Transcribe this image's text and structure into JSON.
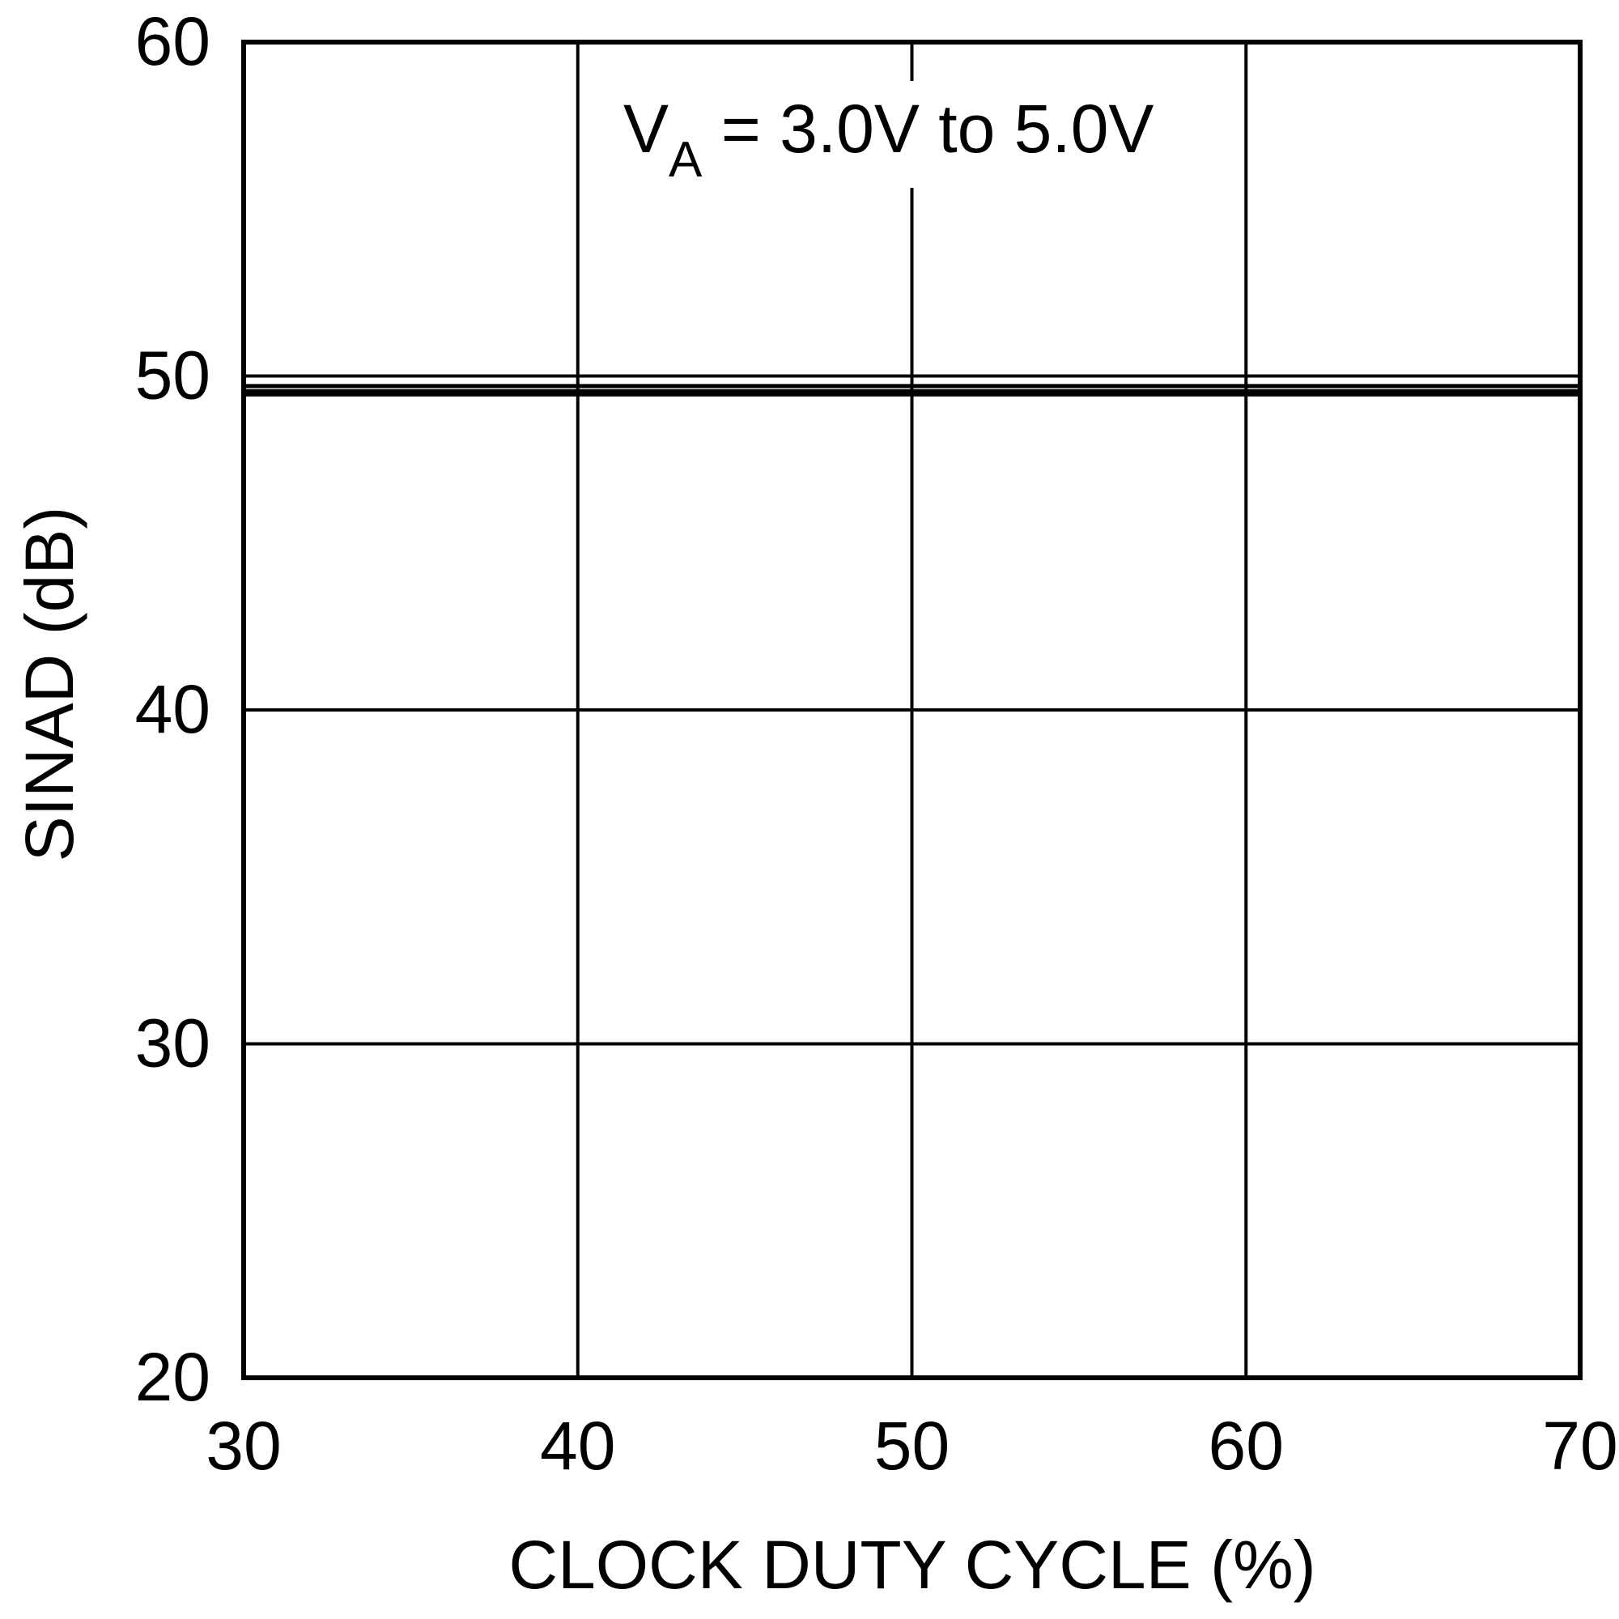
{
  "chart_data": {
    "type": "line",
    "title": "",
    "xlabel": "CLOCK DUTY CYCLE (%)",
    "ylabel": "SINAD (dB)",
    "xlim": [
      30,
      70
    ],
    "ylim": [
      20,
      60
    ],
    "xticks": [
      "30",
      "40",
      "50",
      "60",
      "70"
    ],
    "yticks": [
      "20",
      "30",
      "40",
      "50",
      "60"
    ],
    "grid": true,
    "legend": "none",
    "annotation": {
      "main": "V",
      "subscript": "A",
      "rest": " = 3.0V to 5.0V"
    },
    "series": [
      {
        "x": [
          30,
          40,
          50,
          60,
          70
        ],
        "y": [
          49.7,
          49.7,
          49.7,
          49.7,
          49.7
        ]
      },
      {
        "x": [
          30,
          40,
          50,
          60,
          70
        ],
        "y": [
          49.55,
          49.55,
          49.55,
          49.55,
          49.55
        ]
      },
      {
        "x": [
          30,
          40,
          50,
          60,
          70
        ],
        "y": [
          49.45,
          49.45,
          49.45,
          49.45,
          49.45
        ]
      }
    ],
    "colors": {
      "line": "#000000",
      "grid": "#000000",
      "background": "#ffffff"
    }
  }
}
